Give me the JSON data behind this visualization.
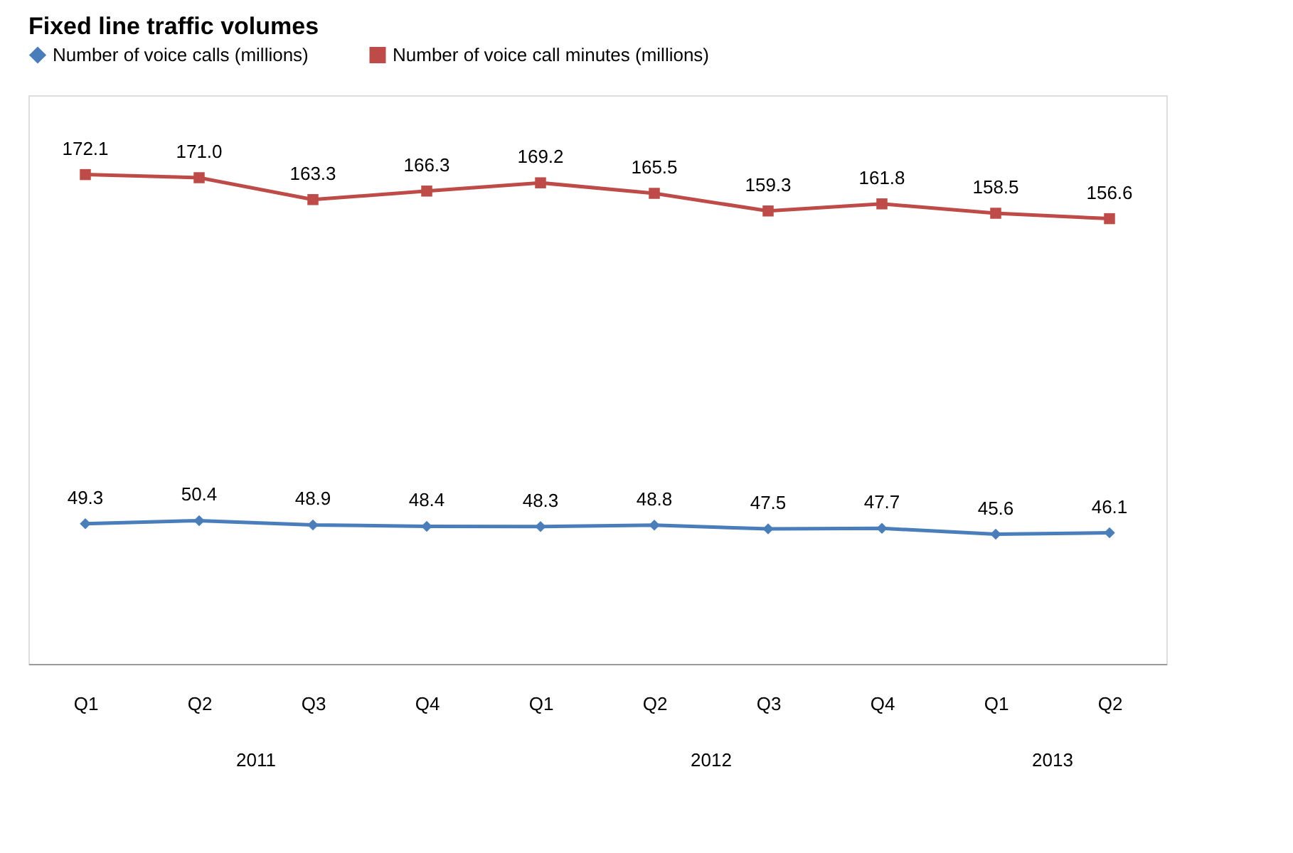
{
  "chart_data": {
    "type": "line",
    "title": "Fixed line traffic volumes",
    "categories": [
      "Q1",
      "Q2",
      "Q3",
      "Q4",
      "Q1",
      "Q2",
      "Q3",
      "Q4",
      "Q1",
      "Q2"
    ],
    "series": [
      {
        "name": "Number of voice calls (millions)",
        "color": "#4a7ebb",
        "marker": "diamond",
        "values": [
          49.3,
          50.4,
          48.9,
          48.4,
          48.3,
          48.8,
          47.5,
          47.7,
          45.6,
          46.1
        ],
        "value_labels": [
          "49.3",
          "50.4",
          "48.9",
          "48.4",
          "48.3",
          "48.8",
          "47.5",
          "47.7",
          "45.6",
          "46.1"
        ]
      },
      {
        "name": "Number of voice call minutes (millions)",
        "color": "#be4b48",
        "marker": "square",
        "values": [
          172.1,
          171.0,
          163.3,
          166.3,
          169.2,
          165.5,
          159.3,
          161.8,
          158.5,
          156.6
        ],
        "value_labels": [
          "172.1",
          "171.0",
          "163.3",
          "166.3",
          "169.2",
          "165.5",
          "159.3",
          "161.8",
          "158.5",
          "156.6"
        ]
      }
    ],
    "annotations": [
      "2011",
      "2012",
      "2013"
    ],
    "ylim": [
      0,
      200
    ],
    "legend": "top",
    "grid": false,
    "tick_labels": "x",
    "line_style": "solid"
  }
}
